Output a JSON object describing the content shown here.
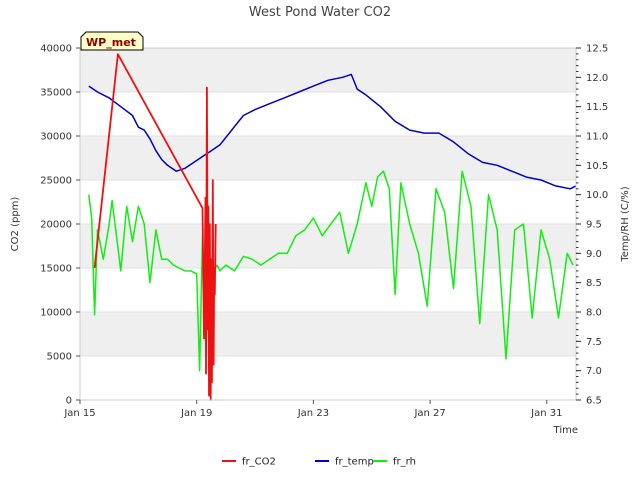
{
  "chart_data": {
    "type": "line",
    "title": "West Pond Water CO2",
    "badge": "WP_met",
    "xlabel": "Time",
    "ylabel_left": "CO2 (ppm)",
    "ylabel_right": "Temp/RH (C/%)",
    "x_start": "Jan 15",
    "x_end": "Feb 1",
    "x_range_days": [
      0,
      17
    ],
    "x_ticks": [
      {
        "label": "Jan 15",
        "day": 0
      },
      {
        "label": "Jan 19",
        "day": 4
      },
      {
        "label": "Jan 23",
        "day": 8
      },
      {
        "label": "Jan 27",
        "day": 12
      },
      {
        "label": "Jan 31",
        "day": 16
      }
    ],
    "ylim_left": [
      0,
      40000
    ],
    "yticks_left": [
      "0",
      "5000",
      "10000",
      "15000",
      "20000",
      "25000",
      "30000",
      "35000",
      "40000"
    ],
    "ylim_right": [
      6.5,
      12.5
    ],
    "yticks_right": [
      "6.5",
      "7.0",
      "7.5",
      "8.0",
      "8.5",
      "9.0",
      "9.5",
      "10.0",
      "10.5",
      "11.0",
      "11.5",
      "12.0",
      "12.5"
    ],
    "legend": [
      "fr_CO2",
      "fr_temp",
      "fr_rh"
    ],
    "legend_position": "bottom",
    "colors": {
      "fr_CO2": "#ee1111",
      "fr_temp": "#0000cc",
      "fr_rh": "#11ee11",
      "band": "#efefef"
    },
    "series": [
      {
        "name": "fr_CO2",
        "axis": "left",
        "x": [
          0.5,
          1.3,
          4.2,
          4.25,
          4.3,
          4.32,
          4.35,
          4.38,
          4.4,
          4.42,
          4.45,
          4.48,
          4.5,
          4.52,
          4.55,
          4.58,
          4.6,
          4.62,
          4.65
        ],
        "y": [
          15000,
          39300,
          21800,
          7000,
          23000,
          3000,
          35500,
          8000,
          22000,
          500,
          20000,
          0,
          16000,
          2000,
          25000,
          4000,
          15000,
          12000,
          20000
        ]
      },
      {
        "name": "fr_temp",
        "axis": "right",
        "x": [
          0.3,
          0.6,
          1.0,
          1.4,
          1.8,
          2.0,
          2.2,
          2.4,
          2.6,
          2.8,
          3.0,
          3.3,
          3.6,
          3.9,
          4.2,
          4.5,
          4.8,
          5.2,
          5.6,
          6.0,
          6.5,
          7.0,
          7.5,
          8.0,
          8.5,
          9.0,
          9.3,
          9.5,
          9.8,
          10.3,
          10.8,
          11.3,
          11.8,
          12.3,
          12.8,
          13.3,
          13.8,
          14.3,
          14.8,
          15.3,
          15.8,
          16.3,
          16.8,
          17.0
        ],
        "y": [
          11.85,
          11.75,
          11.65,
          11.5,
          11.35,
          11.15,
          11.1,
          10.95,
          10.75,
          10.6,
          10.5,
          10.4,
          10.45,
          10.55,
          10.65,
          10.75,
          10.85,
          11.1,
          11.35,
          11.45,
          11.55,
          11.65,
          11.75,
          11.85,
          11.95,
          12.0,
          12.05,
          11.8,
          11.7,
          11.5,
          11.25,
          11.1,
          11.05,
          11.05,
          10.9,
          10.7,
          10.55,
          10.5,
          10.4,
          10.3,
          10.25,
          10.15,
          10.1,
          10.15
        ]
      },
      {
        "name": "fr_rh",
        "axis": "right",
        "x": [
          0.3,
          0.4,
          0.5,
          0.6,
          0.8,
          1.0,
          1.1,
          1.2,
          1.4,
          1.6,
          1.8,
          2.0,
          2.2,
          2.4,
          2.6,
          2.8,
          3.0,
          3.2,
          3.4,
          3.6,
          3.8,
          4.0,
          4.1,
          4.15,
          4.2,
          4.3,
          4.4,
          4.5,
          4.6,
          4.7,
          4.8,
          5.0,
          5.3,
          5.6,
          5.9,
          6.2,
          6.5,
          6.8,
          7.1,
          7.4,
          7.7,
          8.0,
          8.3,
          8.6,
          8.9,
          9.2,
          9.5,
          9.8,
          10.0,
          10.2,
          10.4,
          10.6,
          10.8,
          11.0,
          11.3,
          11.6,
          11.9,
          12.2,
          12.5,
          12.8,
          13.1,
          13.4,
          13.7,
          14.0,
          14.3,
          14.6,
          14.9,
          15.2,
          15.5,
          15.8,
          16.1,
          16.4,
          16.7,
          16.9
        ],
        "y": [
          10.0,
          9.6,
          7.95,
          9.4,
          8.9,
          9.5,
          9.9,
          9.5,
          8.7,
          9.8,
          9.2,
          9.8,
          9.5,
          8.5,
          9.4,
          8.9,
          8.9,
          8.8,
          8.75,
          8.7,
          8.7,
          8.65,
          7.0,
          8.2,
          9.3,
          7.5,
          8.6,
          7.6,
          8.7,
          8.8,
          8.7,
          8.8,
          8.7,
          8.95,
          8.9,
          8.8,
          8.9,
          9.0,
          9.0,
          9.3,
          9.4,
          9.6,
          9.3,
          9.5,
          9.7,
          9.0,
          9.5,
          10.2,
          9.8,
          10.3,
          10.4,
          10.1,
          8.3,
          10.2,
          9.5,
          9.0,
          8.1,
          10.1,
          9.7,
          8.4,
          10.4,
          9.8,
          7.8,
          10.0,
          9.4,
          7.2,
          9.4,
          9.5,
          7.9,
          9.4,
          8.9,
          7.9,
          9.0,
          8.8
        ]
      }
    ]
  }
}
